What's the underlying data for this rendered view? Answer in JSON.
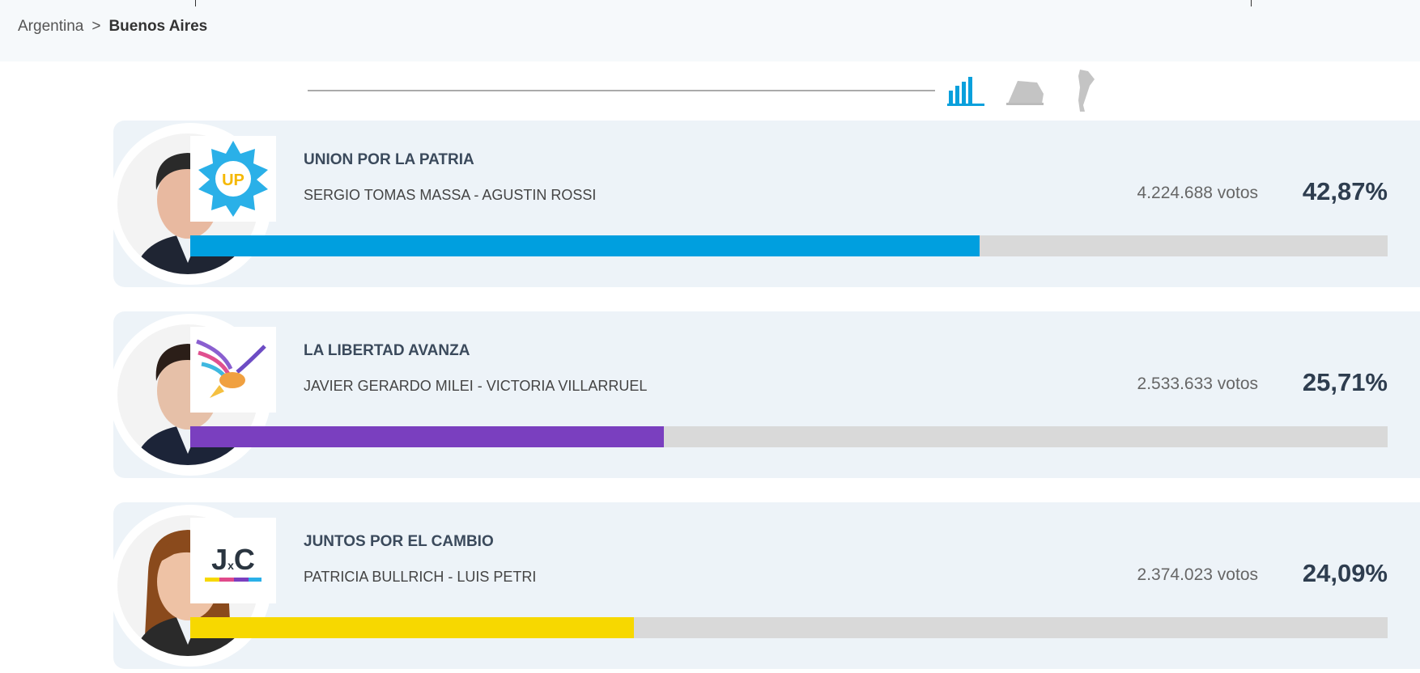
{
  "breadcrumb": {
    "root": "Argentina",
    "separator": ">",
    "current": "Buenos Aires"
  },
  "view_icons": [
    "bar-chart-icon",
    "ballot-box-icon",
    "argentina-map-icon"
  ],
  "active_view": "bar-chart-icon",
  "bar_scale_max_percent": 65,
  "results": [
    {
      "party": "UNION POR LA PATRIA",
      "candidates": "SERGIO TOMAS MASSA  -  AGUSTIN ROSSI",
      "votes": "4.224.688 votos",
      "percent": "42,87%",
      "percent_value": 42.87,
      "color": "#009fdf",
      "logo_text": "UP"
    },
    {
      "party": "LA LIBERTAD AVANZA",
      "candidates": "JAVIER GERARDO MILEI  -  VICTORIA VILLARRUEL",
      "votes": "2.533.633 votos",
      "percent": "25,71%",
      "percent_value": 25.71,
      "color": "#7a3fbf",
      "logo_text": ""
    },
    {
      "party": "JUNTOS POR EL CAMBIO",
      "candidates": "PATRICIA BULLRICH  -  LUIS PETRI",
      "votes": "2.374.023 votos",
      "percent": "24,09%",
      "percent_value": 24.09,
      "color": "#f7d800",
      "logo_text": "JxC"
    }
  ]
}
